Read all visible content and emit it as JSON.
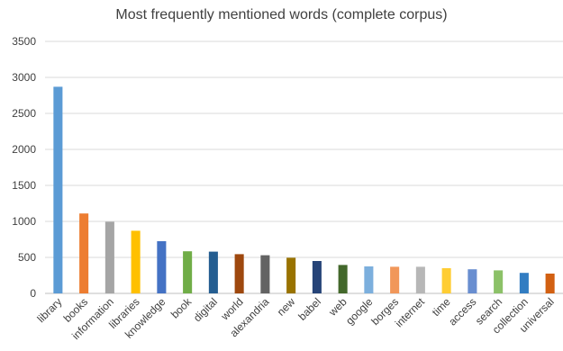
{
  "chart_data": {
    "type": "bar",
    "title": "Most frequently mentioned words (complete corpus)",
    "xlabel": "",
    "ylabel": "",
    "ylim": [
      0,
      3500
    ],
    "yticks": [
      0,
      500,
      1000,
      1500,
      2000,
      2500,
      3000,
      3500
    ],
    "grid": true,
    "legend": "none",
    "categories": [
      "library",
      "books",
      "information",
      "libraries",
      "knowledge",
      "book",
      "digital",
      "world",
      "alexandria",
      "new",
      "babel",
      "web",
      "google",
      "borges",
      "internet",
      "time",
      "access",
      "search",
      "collection",
      "universal"
    ],
    "values": [
      2870,
      1110,
      995,
      870,
      725,
      585,
      580,
      545,
      530,
      495,
      450,
      395,
      375,
      370,
      370,
      350,
      335,
      320,
      285,
      275
    ],
    "colors": [
      "#5B9BD5",
      "#ED7D31",
      "#A5A5A5",
      "#FFC000",
      "#4472C4",
      "#70AD47",
      "#255E91",
      "#9E480E",
      "#636363",
      "#997300",
      "#264478",
      "#43682B",
      "#7CAFDD",
      "#F1975A",
      "#B7B7B7",
      "#FFCD33",
      "#698ED0",
      "#8CC168",
      "#327DC2",
      "#D26012"
    ]
  }
}
